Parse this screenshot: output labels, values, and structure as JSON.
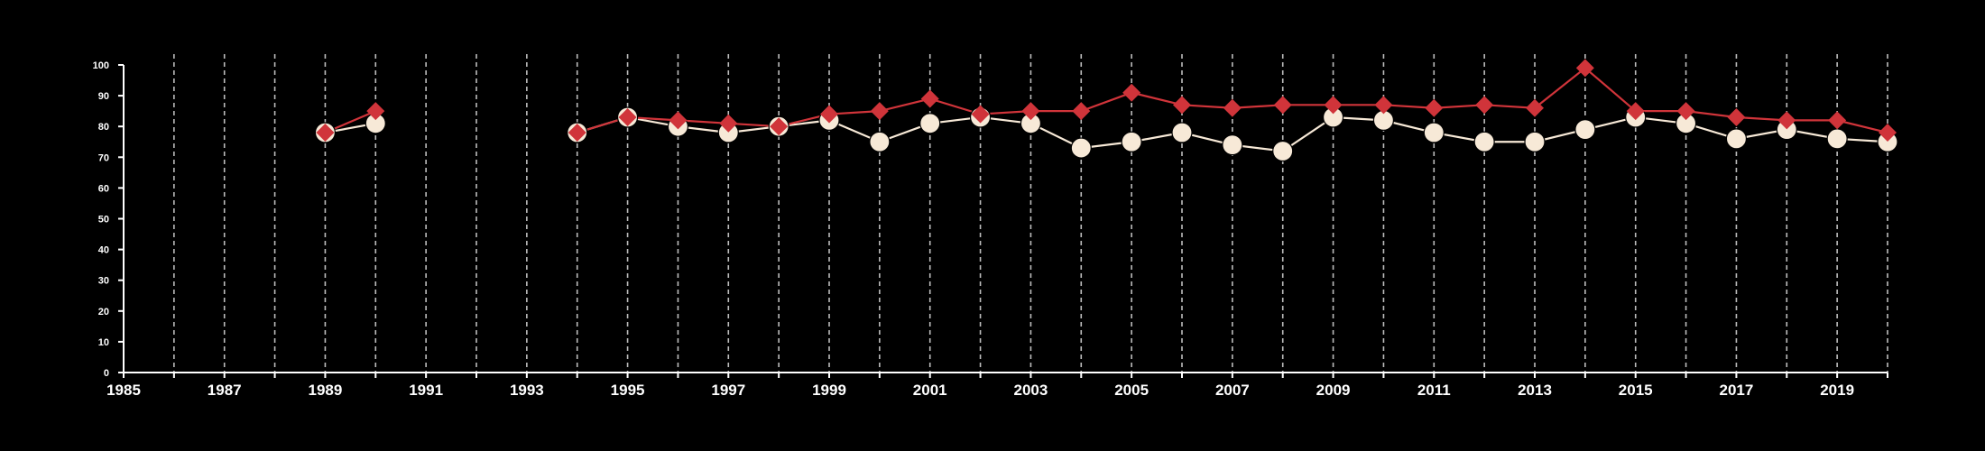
{
  "chart_data": {
    "type": "line",
    "title": "",
    "xlabel": "",
    "ylabel": "",
    "xlim": [
      1985,
      2020
    ],
    "ylim": [
      0,
      100
    ],
    "y_ticks": [
      0,
      10,
      20,
      30,
      40,
      50,
      60,
      70,
      80,
      90,
      100
    ],
    "x_ticks": [
      1985,
      1987,
      1989,
      1991,
      1993,
      1995,
      1997,
      1999,
      2001,
      2003,
      2005,
      2007,
      2009,
      2011,
      2013,
      2015,
      2017,
      2019
    ],
    "grid": "vertical dashed lines at every year",
    "legend": "none",
    "background_color": "#000000",
    "series": [
      {
        "color": "#f7e9d7",
        "marker": "circle",
        "segments": [
          {
            "x": [
              1989,
              1990
            ],
            "y": [
              78,
              81
            ]
          },
          {
            "x": [
              1994,
              1995,
              1996,
              1997,
              1998,
              1999,
              2000,
              2001,
              2002,
              2003,
              2004,
              2005,
              2006,
              2007,
              2008,
              2009,
              2010,
              2011,
              2012,
              2013,
              2014,
              2015,
              2016,
              2017,
              2018,
              2019,
              2020
            ],
            "y": [
              78,
              83,
              80,
              78,
              80,
              82,
              75,
              81,
              83,
              81,
              73,
              75,
              78,
              74,
              72,
              83,
              82,
              78,
              75,
              75,
              79,
              83,
              81,
              76,
              79,
              76,
              75
            ]
          }
        ]
      },
      {
        "color": "#d0343a",
        "marker": "diamond",
        "segments": [
          {
            "x": [
              1989,
              1990
            ],
            "y": [
              78,
              85
            ]
          },
          {
            "x": [
              1994,
              1995,
              1996,
              1997,
              1998,
              1999,
              2000,
              2001,
              2002,
              2003,
              2004,
              2005,
              2006,
              2007,
              2008,
              2009,
              2010,
              2011,
              2012,
              2013,
              2014,
              2015,
              2016,
              2017,
              2018,
              2019,
              2020
            ],
            "y": [
              78,
              83,
              82,
              81,
              80,
              84,
              85,
              89,
              84,
              85,
              85,
              91,
              87,
              86,
              87,
              87,
              87,
              86,
              87,
              86,
              99,
              85,
              85,
              83,
              82,
              82,
              78
            ]
          }
        ]
      }
    ]
  }
}
